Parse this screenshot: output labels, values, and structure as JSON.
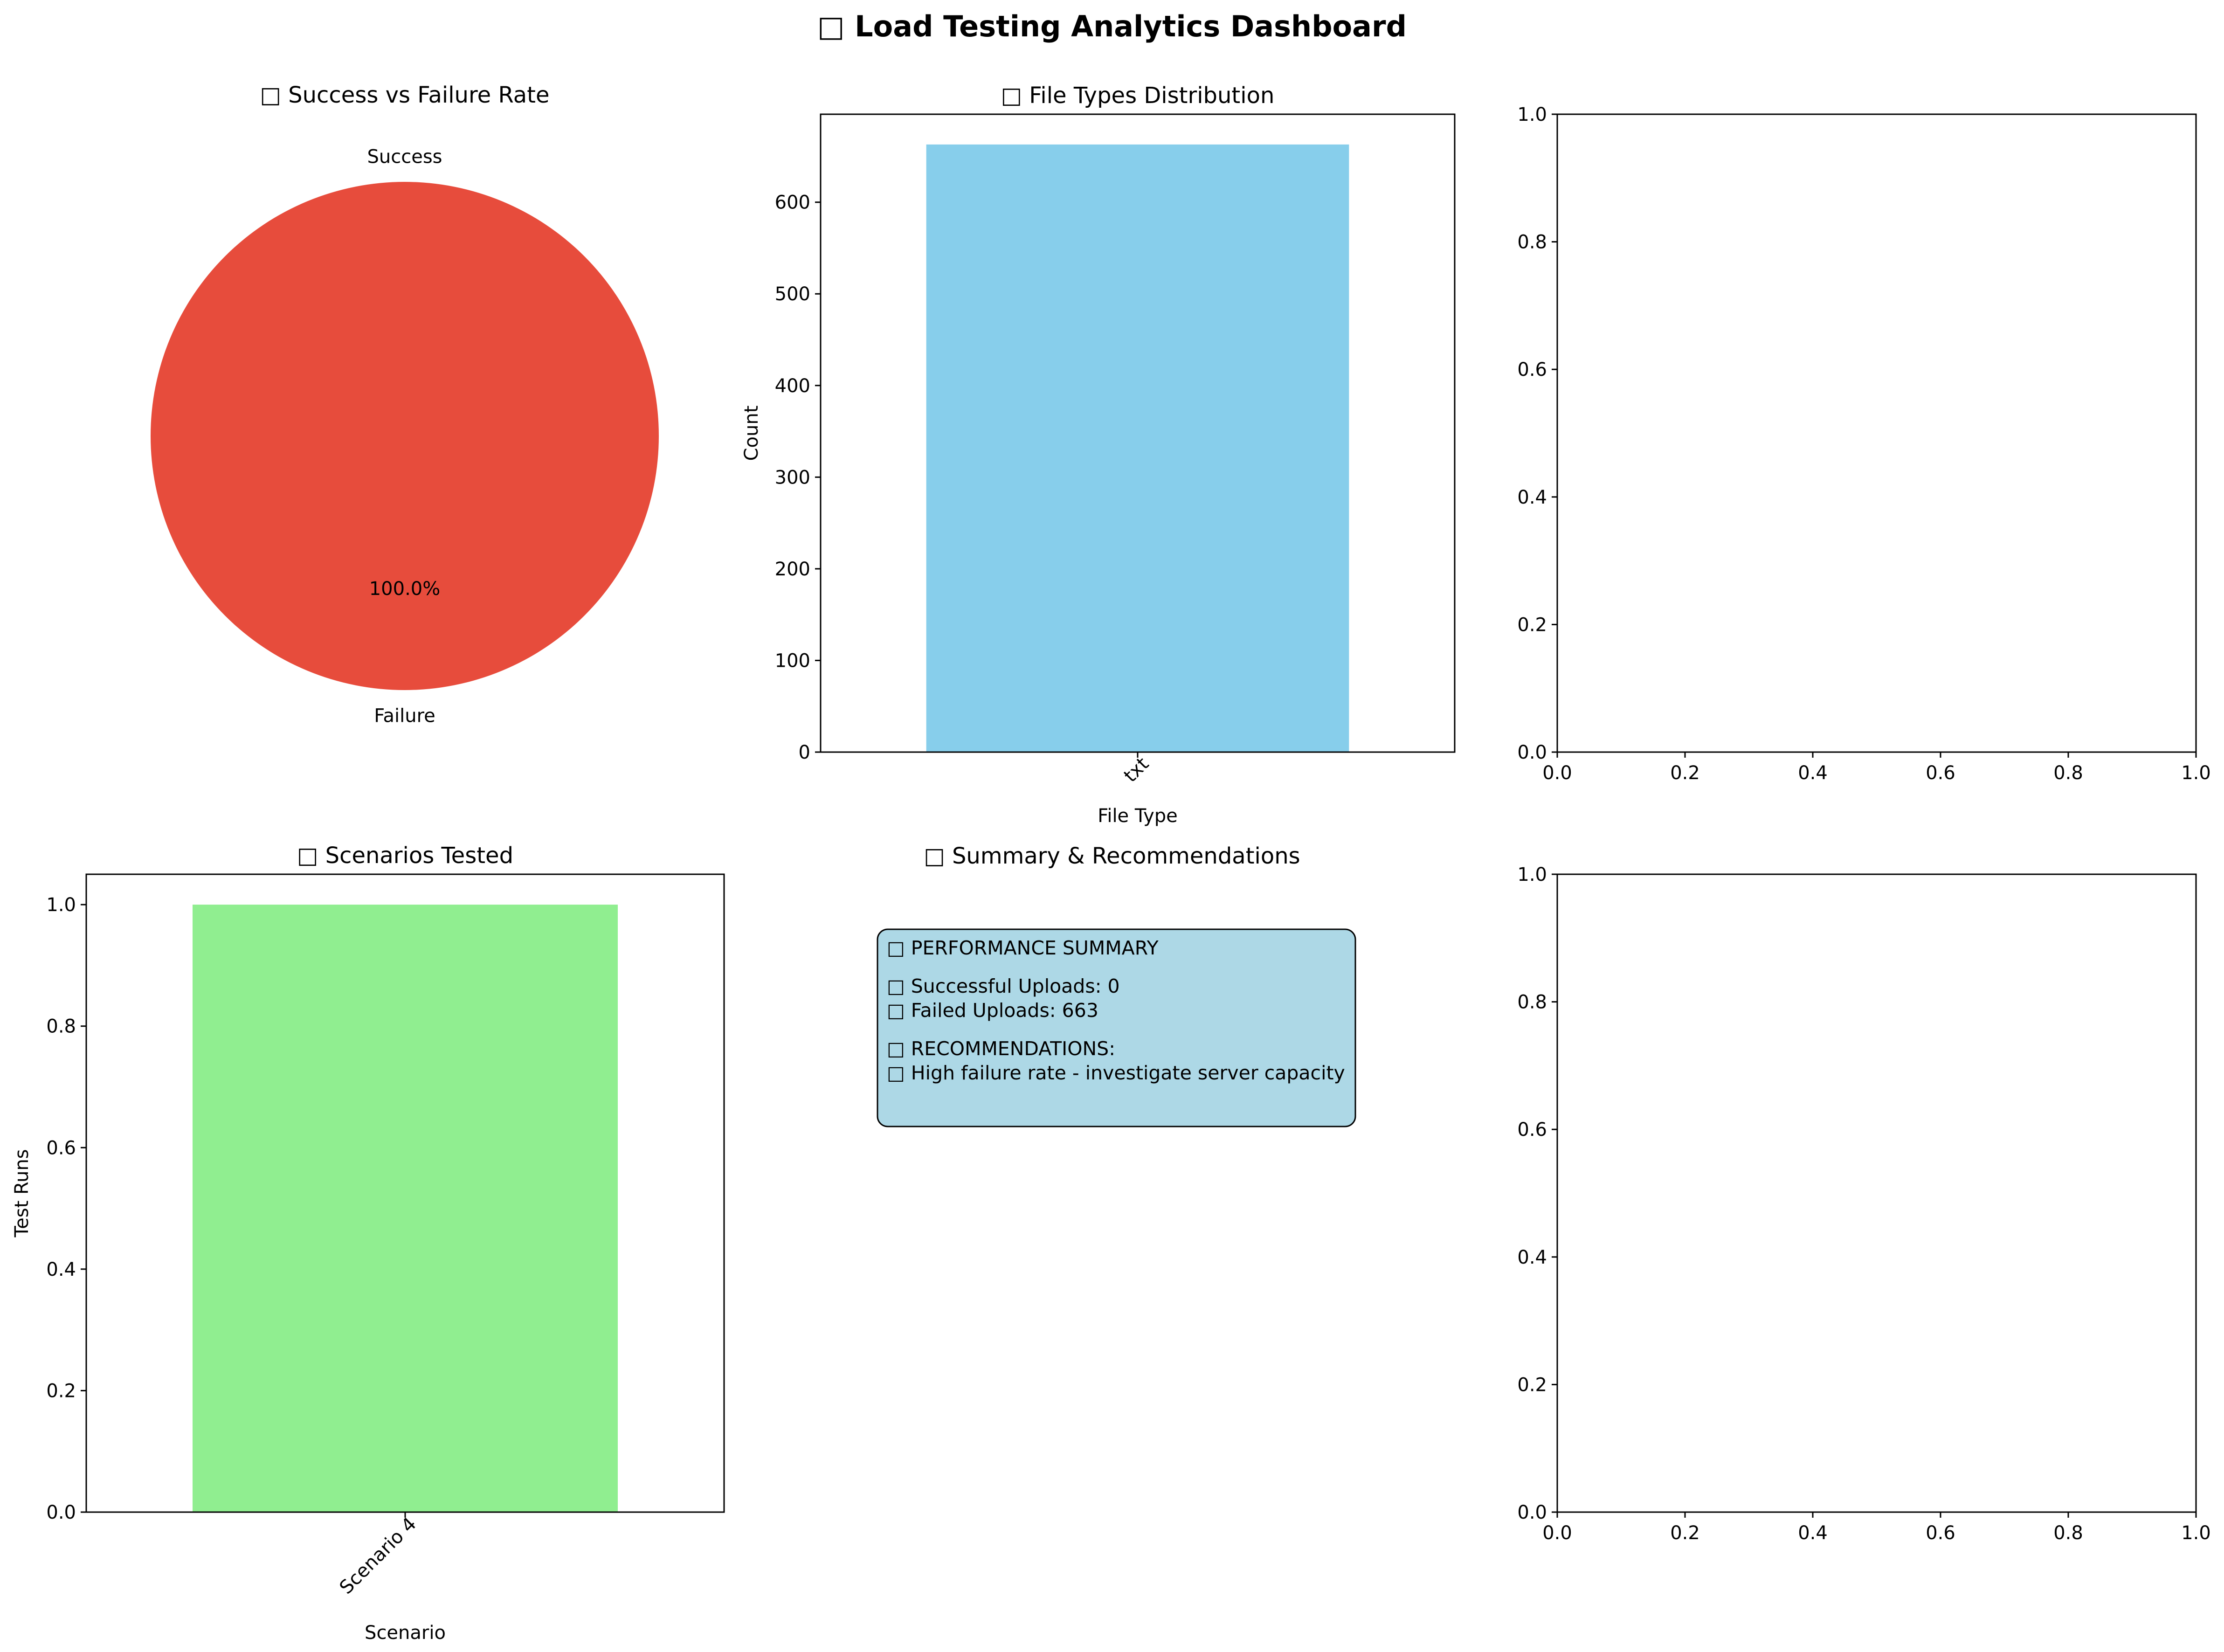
{
  "dashboard": {
    "title": "□ Load Testing Analytics Dashboard"
  },
  "chart_data": [
    {
      "id": "pie",
      "type": "pie",
      "title": "□ Success vs Failure Rate",
      "slices": [
        {
          "label": "Success",
          "value": 0,
          "pct_label": "0.0%",
          "color": "#2ecc71"
        },
        {
          "label": "Failure",
          "value": 663,
          "pct_label": "100.0%",
          "color": "#e74c3c"
        }
      ]
    },
    {
      "id": "file_types",
      "type": "bar",
      "title": "□ File Types Distribution",
      "xlabel": "File Type",
      "ylabel": "Count",
      "categories": [
        "txt"
      ],
      "values": [
        663
      ],
      "ylim": [
        0,
        696
      ],
      "yticks": [
        0,
        100,
        200,
        300,
        400,
        500,
        600
      ],
      "color": "#87ceeb",
      "grid": false
    },
    {
      "id": "empty_top",
      "type": "scatter",
      "title": "",
      "xlim": [
        0,
        1
      ],
      "ylim": [
        0,
        1
      ],
      "xticks": [
        0.0,
        0.2,
        0.4,
        0.6,
        0.8,
        1.0
      ],
      "yticks": [
        0.0,
        0.2,
        0.4,
        0.6,
        0.8,
        1.0
      ],
      "series": []
    },
    {
      "id": "scenarios",
      "type": "bar",
      "title": "□ Scenarios Tested",
      "xlabel": "Scenario",
      "ylabel": "Test Runs",
      "categories": [
        "Scenario 4"
      ],
      "values": [
        1
      ],
      "ylim": [
        0,
        1.05
      ],
      "yticks": [
        0.0,
        0.2,
        0.4,
        0.6,
        0.8,
        1.0
      ],
      "color": "#90ee90",
      "grid": false
    },
    {
      "id": "summary",
      "type": "table",
      "title": "□ Summary & Recommendations",
      "lines": [
        "□ PERFORMANCE SUMMARY",
        "",
        "□ Successful Uploads: 0",
        "□ Failed Uploads: 663",
        "",
        "□ RECOMMENDATIONS:",
        "□ High failure rate - investigate server capacity"
      ],
      "box_color": "#add8e6"
    },
    {
      "id": "empty_bottom",
      "type": "scatter",
      "title": "",
      "xlim": [
        0,
        1
      ],
      "ylim": [
        0,
        1
      ],
      "xticks": [
        0.0,
        0.2,
        0.4,
        0.6,
        0.8,
        1.0
      ],
      "yticks": [
        0.0,
        0.2,
        0.4,
        0.6,
        0.8,
        1.0
      ],
      "series": []
    }
  ]
}
